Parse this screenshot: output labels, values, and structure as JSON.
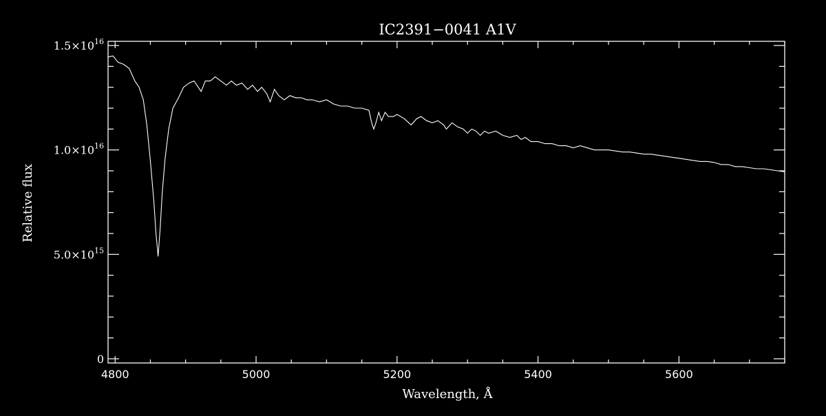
{
  "chart_data": {
    "type": "line",
    "title": "IC2391−0041   A1V",
    "xlabel": "Wavelength, Å",
    "ylabel": "Relative flux",
    "xlim": [
      4790,
      5750
    ],
    "ylim": [
      -200000000000000.0,
      1.52e+16
    ],
    "grid": false,
    "legend": "none",
    "colors": {
      "background": "#000000",
      "foreground": "#ffffff"
    },
    "x_ticks": [
      {
        "value": 4800,
        "label": "4800"
      },
      {
        "value": 5000,
        "label": "5000"
      },
      {
        "value": 5200,
        "label": "5200"
      },
      {
        "value": 5400,
        "label": "5400"
      },
      {
        "value": 5600,
        "label": "5600"
      }
    ],
    "y_ticks": [
      {
        "value": 0,
        "label": "0"
      },
      {
        "value": 5000000000000000.0,
        "label": "5.0×10",
        "exp": "15"
      },
      {
        "value": 1e+16,
        "label": "1.0×10",
        "exp": "16"
      },
      {
        "value": 1.5e+16,
        "label": "1.5×10",
        "exp": "16"
      }
    ],
    "series": [
      {
        "x": [
          4790,
          4797,
          4804,
          4812,
          4820,
          4828,
          4834,
          4840,
          4845,
          4850,
          4855,
          4858,
          4861,
          4864,
          4867,
          4871,
          4876,
          4882,
          4890,
          4897,
          4905,
          4912,
          4918,
          4922,
          4928,
          4935,
          4942,
          4950,
          4958,
          4965,
          4972,
          4980,
          4988,
          4995,
          5002,
          5008,
          5015,
          5020,
          5026,
          5032,
          5040,
          5048,
          5056,
          5064,
          5072,
          5080,
          5090,
          5100,
          5110,
          5120,
          5130,
          5140,
          5150,
          5160,
          5164,
          5167,
          5170,
          5174,
          5178,
          5183,
          5188,
          5195,
          5200,
          5210,
          5220,
          5228,
          5234,
          5242,
          5250,
          5258,
          5266,
          5270,
          5278,
          5286,
          5294,
          5300,
          5306,
          5312,
          5318,
          5324,
          5330,
          5340,
          5350,
          5360,
          5370,
          5376,
          5382,
          5390,
          5400,
          5410,
          5420,
          5430,
          5440,
          5450,
          5460,
          5470,
          5480,
          5490,
          5500,
          5510,
          5520,
          5530,
          5540,
          5550,
          5560,
          5570,
          5580,
          5590,
          5600,
          5610,
          5620,
          5630,
          5640,
          5650,
          5660,
          5670,
          5680,
          5690,
          5700,
          5710,
          5720,
          5730,
          5740,
          5750
        ],
        "y": [
          1.445e+16,
          1.45e+16,
          1.42e+16,
          1.41e+16,
          1.39e+16,
          1.33e+16,
          1.3e+16,
          1.24e+16,
          1.12e+16,
          9500000000000000.0,
          7500000000000000.0,
          6000000000000000.0,
          4900000000000000.0,
          6300000000000000.0,
          8000000000000000.0,
          9600000000000000.0,
          1.1e+16,
          1.2e+16,
          1.25e+16,
          1.3e+16,
          1.32e+16,
          1.33e+16,
          1.3e+16,
          1.28e+16,
          1.33e+16,
          1.33e+16,
          1.35e+16,
          1.33e+16,
          1.31e+16,
          1.33e+16,
          1.31e+16,
          1.32e+16,
          1.29e+16,
          1.31e+16,
          1.28e+16,
          1.3e+16,
          1.27e+16,
          1.23e+16,
          1.29e+16,
          1.26e+16,
          1.24e+16,
          1.26e+16,
          1.25e+16,
          1.25e+16,
          1.24e+16,
          1.24e+16,
          1.23e+16,
          1.24e+16,
          1.22e+16,
          1.21e+16,
          1.21e+16,
          1.2e+16,
          1.2e+16,
          1.19e+16,
          1.13e+16,
          1.1e+16,
          1.13e+16,
          1.18e+16,
          1.14e+16,
          1.18e+16,
          1.16e+16,
          1.16e+16,
          1.17e+16,
          1.15e+16,
          1.12e+16,
          1.15e+16,
          1.16e+16,
          1.14e+16,
          1.13e+16,
          1.14e+16,
          1.12e+16,
          1.1e+16,
          1.13e+16,
          1.11e+16,
          1.1e+16,
          1.08e+16,
          1.1e+16,
          1.09e+16,
          1.07e+16,
          1.09e+16,
          1.08e+16,
          1.09e+16,
          1.07e+16,
          1.06e+16,
          1.07e+16,
          1.05e+16,
          1.06e+16,
          1.04e+16,
          1.04e+16,
          1.03e+16,
          1.03e+16,
          1.02e+16,
          1.02e+16,
          1.01e+16,
          1.02e+16,
          1.01e+16,
          1e+16,
          1e+16,
          1e+16,
          9950000000000000.0,
          9900000000000000.0,
          9900000000000000.0,
          9850000000000000.0,
          9800000000000000.0,
          9800000000000000.0,
          9750000000000000.0,
          9700000000000000.0,
          9650000000000000.0,
          9600000000000000.0,
          9550000000000000.0,
          9500000000000000.0,
          9450000000000000.0,
          9450000000000000.0,
          9400000000000000.0,
          9300000000000000.0,
          9300000000000000.0,
          9200000000000000.0,
          9200000000000000.0,
          9150000000000000.0,
          9100000000000000.0,
          9100000000000000.0,
          9050000000000000.0,
          9000000000000000.0,
          8950000000000000.0
        ]
      }
    ]
  }
}
